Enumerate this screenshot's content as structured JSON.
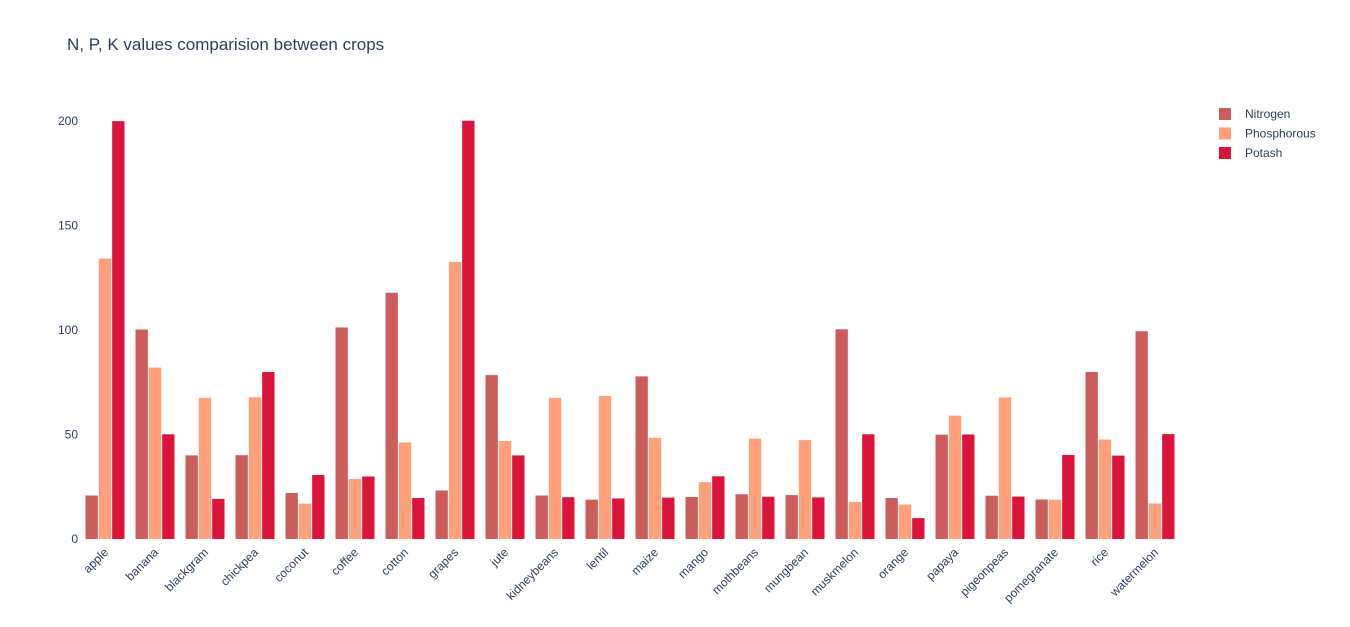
{
  "chart_data": {
    "type": "bar",
    "title": "N, P, K values comparision between crops",
    "xlabel": "",
    "ylabel": "",
    "ylim": [
      0,
      210
    ],
    "yticks": [
      0,
      50,
      100,
      150,
      200
    ],
    "grid": false,
    "legend_position": "top-right",
    "categories": [
      "apple",
      "banana",
      "blackgram",
      "chickpea",
      "coconut",
      "coffee",
      "cotton",
      "grapes",
      "jute",
      "kidneybeans",
      "lentil",
      "maize",
      "mango",
      "mothbeans",
      "mungbean",
      "muskmelon",
      "orange",
      "papaya",
      "pigeonpeas",
      "pomegranate",
      "rice",
      "watermelon"
    ],
    "series": [
      {
        "name": "Nitrogen",
        "color": "#cd5c5c",
        "values": [
          20.8,
          100.2,
          40.0,
          40.1,
          22.0,
          101.2,
          117.8,
          23.2,
          78.4,
          20.8,
          18.8,
          77.8,
          20.1,
          21.4,
          21.0,
          100.3,
          19.6,
          49.9,
          20.7,
          18.9,
          79.9,
          99.4
        ]
      },
      {
        "name": "Phosphorous",
        "color": "#ffa07a",
        "values": [
          134.2,
          82.0,
          67.5,
          67.8,
          16.9,
          28.7,
          46.2,
          132.5,
          46.9,
          67.5,
          68.4,
          48.4,
          27.2,
          48.0,
          47.3,
          17.7,
          16.5,
          59.0,
          67.7,
          18.8,
          47.6,
          17.0
        ]
      },
      {
        "name": "Potash",
        "color": "#dc143c",
        "values": [
          199.9,
          50.1,
          19.2,
          79.9,
          30.6,
          29.9,
          19.6,
          200.1,
          40.0,
          20.0,
          19.4,
          19.8,
          30.0,
          20.2,
          19.9,
          50.1,
          10.0,
          50.0,
          20.3,
          40.2,
          39.9,
          50.2
        ]
      }
    ]
  }
}
